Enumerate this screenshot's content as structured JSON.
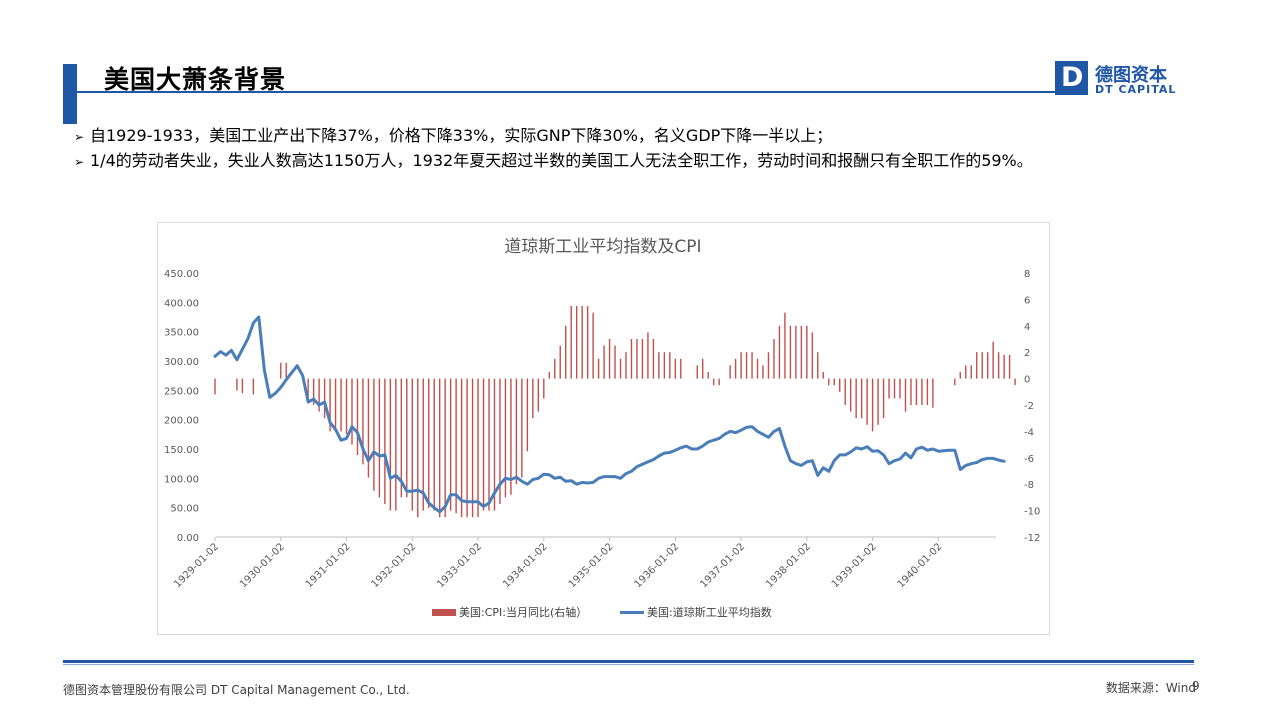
{
  "header": {
    "title": "美国大萧条背景",
    "logo_letter": "D",
    "logo_cn": "德图资本",
    "logo_en": "DT CAPITAL"
  },
  "bullets": [
    {
      "text": "自1929-1933，美国工业产出下降37%，价格下降33%，实际GNP下降30%，名义GDP下降一半以上；"
    },
    {
      "text": "1/4的劳动者失业，失业人数高达1150万人，1932年夏天超过半数的美国工人无法全职工作，劳动时间和报酬只有全职工作的59%。"
    }
  ],
  "footer": {
    "company": "德图资本管理股份有限公司  DT Capital  Management  Co., Ltd.",
    "source": "数据来源：Wind",
    "page": "9"
  },
  "colors": {
    "accent": "#1f56a6",
    "line_series": "#4a7ebb",
    "bar_series": "#c0504d"
  },
  "chart_data": {
    "type": "bar+line",
    "title": "道琼斯工业平均指数及CPI",
    "x_ticks": [
      "1929-01-02",
      "1930-01-02",
      "1931-01-02",
      "1932-01-02",
      "1933-01-02",
      "1934-01-02",
      "1935-01-02",
      "1936-01-02",
      "1937-01-02",
      "1938-01-02",
      "1939-01-02",
      "1940-01-02"
    ],
    "y_left": {
      "min": 0,
      "max": 450,
      "step": 50,
      "ticks": [
        "0.00",
        "50.00",
        "100.00",
        "150.00",
        "200.00",
        "250.00",
        "300.00",
        "350.00",
        "400.00",
        "450.00"
      ]
    },
    "y_right": {
      "min": -12,
      "max": 8,
      "step": 2,
      "ticks": [
        "-12",
        "-10",
        "-8",
        "-6",
        "-4",
        "-2",
        "0",
        "2",
        "4",
        "6",
        "8"
      ]
    },
    "legend": [
      {
        "name": "美国:CPI:当月同比(右轴）",
        "kind": "bar"
      },
      {
        "name": "美国:道琼斯工业平均指数",
        "kind": "line"
      }
    ],
    "legend_position": "bottom",
    "cpi_start": "1929-01",
    "cpi_yoy": [
      -1.2,
      0,
      0,
      0,
      -0.9,
      -1.1,
      0,
      -1.2,
      0,
      0,
      0,
      0,
      1.2,
      1.2,
      0,
      0,
      0,
      -1.5,
      -2,
      -2.5,
      -3,
      -4,
      -4,
      -4,
      -4.2,
      -5,
      -5.8,
      -6.5,
      -7.5,
      -8.5,
      -9,
      -9.5,
      -10,
      -10,
      -9,
      -9,
      -10,
      -10.5,
      -10,
      -9.8,
      -10,
      -10.5,
      -10.5,
      -10,
      -10.2,
      -10.5,
      -10.5,
      -10.5,
      -10.5,
      -10,
      -10,
      -10,
      -9.5,
      -9,
      -8.8,
      -8,
      -7.5,
      -5.5,
      -3,
      -2.5,
      -1.5,
      0.5,
      1.5,
      2.5,
      4,
      5.5,
      5.5,
      5.5,
      5.5,
      5,
      1.5,
      2.5,
      3,
      2.5,
      1.5,
      2,
      3,
      3,
      3,
      3.5,
      3,
      2,
      2,
      2,
      1.5,
      1.5,
      0,
      0,
      1,
      1.5,
      0.5,
      -0.5,
      -0.5,
      0,
      1,
      1.5,
      2,
      2,
      2,
      1.5,
      1,
      2,
      3,
      4,
      5,
      4,
      4,
      4,
      4,
      3.5,
      2,
      0.5,
      -0.5,
      -0.5,
      -1,
      -2,
      -2.5,
      -3,
      -3,
      -3.5,
      -4,
      -3.5,
      -3,
      -1.5,
      -1.5,
      -1.5,
      -2.5,
      -2,
      -2,
      -2,
      -2,
      -2.2,
      0,
      0,
      0,
      -0.5,
      0.5,
      1,
      1,
      2,
      2,
      2,
      2.8,
      2,
      1.8,
      1.8,
      -0.5
    ],
    "djia_monthly": [
      [
        "1929-01",
        308
      ],
      [
        "1929-02",
        316
      ],
      [
        "1929-03",
        310
      ],
      [
        "1929-04",
        318
      ],
      [
        "1929-05",
        302
      ],
      [
        "1929-06",
        320
      ],
      [
        "1929-07",
        338
      ],
      [
        "1929-08",
        365
      ],
      [
        "1929-09",
        375
      ],
      [
        "1929-10",
        285
      ],
      [
        "1929-11",
        238
      ],
      [
        "1929-12",
        245
      ],
      [
        "1930-01",
        255
      ],
      [
        "1930-02",
        268
      ],
      [
        "1930-03",
        280
      ],
      [
        "1930-04",
        292
      ],
      [
        "1930-05",
        275
      ],
      [
        "1930-06",
        230
      ],
      [
        "1930-07",
        235
      ],
      [
        "1930-08",
        225
      ],
      [
        "1930-09",
        230
      ],
      [
        "1930-10",
        195
      ],
      [
        "1930-11",
        183
      ],
      [
        "1930-12",
        165
      ],
      [
        "1931-01",
        168
      ],
      [
        "1931-02",
        188
      ],
      [
        "1931-03",
        178
      ],
      [
        "1931-04",
        150
      ],
      [
        "1931-05",
        130
      ],
      [
        "1931-06",
        145
      ],
      [
        "1931-07",
        138
      ],
      [
        "1931-08",
        140
      ],
      [
        "1931-09",
        100
      ],
      [
        "1931-10",
        105
      ],
      [
        "1931-11",
        95
      ],
      [
        "1931-12",
        78
      ],
      [
        "1932-01",
        78
      ],
      [
        "1932-02",
        80
      ],
      [
        "1932-03",
        75
      ],
      [
        "1932-04",
        58
      ],
      [
        "1932-05",
        50
      ],
      [
        "1932-06",
        43
      ],
      [
        "1932-07",
        52
      ],
      [
        "1932-08",
        72
      ],
      [
        "1932-09",
        72
      ],
      [
        "1932-10",
        62
      ],
      [
        "1932-11",
        60
      ],
      [
        "1932-12",
        60
      ],
      [
        "1933-01",
        60
      ],
      [
        "1933-02",
        52
      ],
      [
        "1933-03",
        58
      ],
      [
        "1933-04",
        75
      ],
      [
        "1933-05",
        90
      ],
      [
        "1933-06",
        100
      ],
      [
        "1933-07",
        98
      ],
      [
        "1933-08",
        102
      ],
      [
        "1933-09",
        95
      ],
      [
        "1933-10",
        90
      ],
      [
        "1933-11",
        98
      ],
      [
        "1933-12",
        100
      ],
      [
        "1934-01",
        107
      ],
      [
        "1934-02",
        106
      ],
      [
        "1934-03",
        100
      ],
      [
        "1934-04",
        102
      ],
      [
        "1934-05",
        95
      ],
      [
        "1934-06",
        96
      ],
      [
        "1934-07",
        90
      ],
      [
        "1934-08",
        93
      ],
      [
        "1934-09",
        92
      ],
      [
        "1934-10",
        93
      ],
      [
        "1934-11",
        100
      ],
      [
        "1934-12",
        103
      ],
      [
        "1935-01",
        103
      ],
      [
        "1935-02",
        103
      ],
      [
        "1935-03",
        100
      ],
      [
        "1935-04",
        108
      ],
      [
        "1935-05",
        112
      ],
      [
        "1935-06",
        120
      ],
      [
        "1935-07",
        124
      ],
      [
        "1935-08",
        128
      ],
      [
        "1935-09",
        132
      ],
      [
        "1935-10",
        138
      ],
      [
        "1935-11",
        143
      ],
      [
        "1935-12",
        144
      ],
      [
        "1936-01",
        148
      ],
      [
        "1936-02",
        152
      ],
      [
        "1936-03",
        155
      ],
      [
        "1936-04",
        150
      ],
      [
        "1936-05",
        150
      ],
      [
        "1936-06",
        155
      ],
      [
        "1936-07",
        162
      ],
      [
        "1936-08",
        165
      ],
      [
        "1936-09",
        168
      ],
      [
        "1936-10",
        175
      ],
      [
        "1936-11",
        180
      ],
      [
        "1936-12",
        178
      ],
      [
        "1937-01",
        182
      ],
      [
        "1937-02",
        187
      ],
      [
        "1937-03",
        188
      ],
      [
        "1937-04",
        180
      ],
      [
        "1937-05",
        175
      ],
      [
        "1937-06",
        170
      ],
      [
        "1937-07",
        180
      ],
      [
        "1937-08",
        185
      ],
      [
        "1937-09",
        155
      ],
      [
        "1937-10",
        130
      ],
      [
        "1937-11",
        125
      ],
      [
        "1937-12",
        122
      ],
      [
        "1938-01",
        128
      ],
      [
        "1938-02",
        130
      ],
      [
        "1938-03",
        105
      ],
      [
        "1938-04",
        118
      ],
      [
        "1938-05",
        112
      ],
      [
        "1938-06",
        130
      ],
      [
        "1938-07",
        140
      ],
      [
        "1938-08",
        140
      ],
      [
        "1938-09",
        145
      ],
      [
        "1938-10",
        152
      ],
      [
        "1938-11",
        150
      ],
      [
        "1938-12",
        154
      ],
      [
        "1939-01",
        146
      ],
      [
        "1939-02",
        147
      ],
      [
        "1939-03",
        140
      ],
      [
        "1939-04",
        125
      ],
      [
        "1939-05",
        130
      ],
      [
        "1939-06",
        133
      ],
      [
        "1939-07",
        143
      ],
      [
        "1939-08",
        135
      ],
      [
        "1939-09",
        150
      ],
      [
        "1939-10",
        153
      ],
      [
        "1939-11",
        148
      ],
      [
        "1939-12",
        150
      ],
      [
        "1940-01",
        146
      ],
      [
        "1940-02",
        147
      ],
      [
        "1940-03",
        148
      ],
      [
        "1940-04",
        148
      ],
      [
        "1940-05",
        115
      ],
      [
        "1940-06",
        122
      ],
      [
        "1940-07",
        125
      ],
      [
        "1940-08",
        127
      ],
      [
        "1940-09",
        132
      ],
      [
        "1940-10",
        134
      ],
      [
        "1940-11",
        134
      ],
      [
        "1940-12",
        131
      ],
      [
        "1941-01",
        129
      ]
    ]
  }
}
